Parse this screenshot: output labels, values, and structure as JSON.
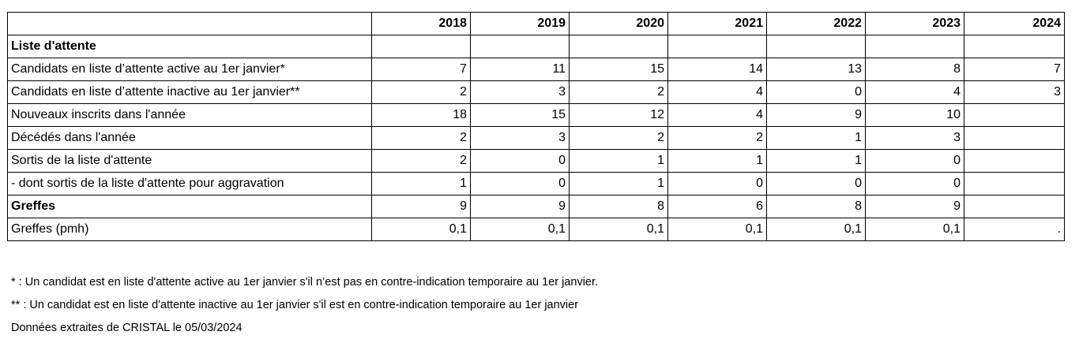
{
  "table": {
    "years": [
      "2018",
      "2019",
      "2020",
      "2021",
      "2022",
      "2023",
      "2024"
    ],
    "rows": [
      {
        "label": "Liste d'attente",
        "bold": true,
        "values": [
          "",
          "",
          "",
          "",
          "",
          "",
          ""
        ]
      },
      {
        "label": "Candidats en liste d’attente active au 1er janvier*",
        "bold": false,
        "values": [
          "7",
          "11",
          "15",
          "14",
          "13",
          "8",
          "7"
        ]
      },
      {
        "label": "Candidats en liste d’attente inactive au 1er janvier**",
        "bold": false,
        "values": [
          "2",
          "3",
          "2",
          "4",
          "0",
          "4",
          "3"
        ]
      },
      {
        "label": "Nouveaux inscrits dans l'année",
        "bold": false,
        "values": [
          "18",
          "15",
          "12",
          "4",
          "9",
          "10",
          ""
        ]
      },
      {
        "label": "Décédés dans l'année",
        "bold": false,
        "values": [
          "2",
          "3",
          "2",
          "2",
          "1",
          "3",
          ""
        ]
      },
      {
        "label": "Sortis de la liste d'attente",
        "bold": false,
        "values": [
          "2",
          "0",
          "1",
          "1",
          "1",
          "0",
          ""
        ]
      },
      {
        "label": "- dont sortis de la liste d'attente pour aggravation",
        "bold": false,
        "values": [
          "1",
          "0",
          "1",
          "0",
          "0",
          "0",
          ""
        ]
      },
      {
        "label": "Greffes",
        "bold": true,
        "values": [
          "9",
          "9",
          "8",
          "6",
          "8",
          "9",
          ""
        ]
      },
      {
        "label": "Greffes (pmh)",
        "bold": false,
        "values": [
          "0,1",
          "0,1",
          "0,1",
          "0,1",
          "0,1",
          "0,1",
          "."
        ]
      }
    ]
  },
  "footnotes": [
    "* : Un candidat est en liste d'attente active au 1er janvier s'il n’est pas en contre-indication temporaire au 1er janvier.",
    "** : Un candidat est en liste d'attente inactive au 1er janvier s'il est en contre-indication temporaire au 1er janvier",
    "Données extraites de CRISTAL le 05/03/2024"
  ]
}
